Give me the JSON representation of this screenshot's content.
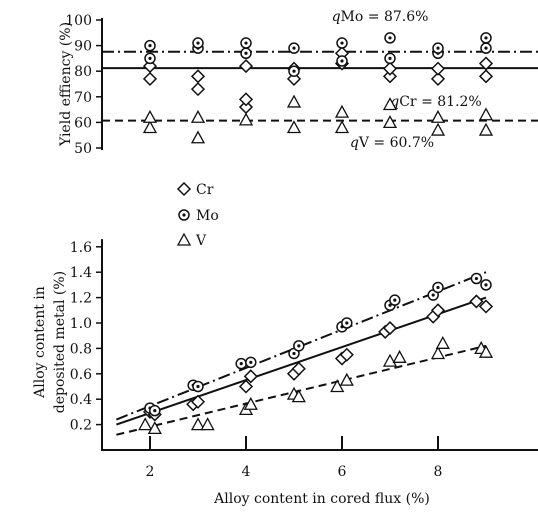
{
  "chart_data": [
    {
      "type": "scatter",
      "panel": "top",
      "ylabel": "Yield effiency (%)",
      "ylim": [
        50,
        100
      ],
      "yticks": [
        50,
        60,
        70,
        80,
        90,
        100
      ],
      "xlim": [
        1,
        9
      ],
      "series": [
        {
          "name": "Cr",
          "marker": "diamond",
          "x": [
            2,
            2,
            3,
            3,
            4,
            4,
            4,
            5,
            5,
            6,
            6,
            7,
            7,
            8,
            8,
            9,
            9
          ],
          "y": [
            77,
            82,
            73,
            78,
            66,
            69,
            82,
            77,
            81,
            83,
            87,
            78,
            81,
            77,
            81,
            78,
            83
          ]
        },
        {
          "name": "Mo",
          "marker": "circle-dot",
          "x": [
            2,
            2,
            3,
            3,
            4,
            4,
            5,
            5,
            6,
            6,
            7,
            7,
            8,
            8,
            9,
            9
          ],
          "y": [
            85,
            90,
            89,
            91,
            87,
            91,
            80,
            89,
            84,
            91,
            85,
            93,
            87,
            89,
            89,
            93
          ]
        },
        {
          "name": "V",
          "marker": "triangle",
          "x": [
            2,
            2,
            3,
            3,
            4,
            5,
            5,
            6,
            6,
            7,
            7,
            8,
            8,
            9,
            9
          ],
          "y": [
            58,
            62,
            54,
            62,
            61,
            58,
            68,
            58,
            64,
            60,
            67,
            57,
            62,
            57,
            63
          ]
        }
      ],
      "reference_lines": [
        {
          "series": "Mo",
          "value": 87.6,
          "label": "qMo = 87.6%",
          "style": "dash-dot"
        },
        {
          "series": "Cr",
          "value": 81.2,
          "label": "qCr = 81.2%",
          "style": "solid"
        },
        {
          "series": "V",
          "value": 60.7,
          "label": "qV = 60.7%",
          "style": "dashed"
        }
      ]
    },
    {
      "type": "scatter",
      "panel": "bottom",
      "xlabel": "Alloy content in cored flux (%)",
      "ylabel": "Alloy content in deposited metal (%)",
      "xlim": [
        1,
        9
      ],
      "xticks": [
        2,
        4,
        6,
        8
      ],
      "ylim": [
        0,
        1.6
      ],
      "yticks": [
        0.2,
        0.4,
        0.6,
        0.8,
        1.0,
        1.2,
        1.4,
        1.6
      ],
      "series": [
        {
          "name": "Cr",
          "marker": "diamond",
          "x": [
            2,
            2.1,
            2.9,
            3,
            4,
            4.1,
            5,
            5.1,
            6,
            6.1,
            6.9,
            7,
            7.9,
            8,
            8.8,
            9
          ],
          "y": [
            0.3,
            0.28,
            0.36,
            0.38,
            0.5,
            0.58,
            0.6,
            0.64,
            0.72,
            0.75,
            0.93,
            0.96,
            1.05,
            1.1,
            1.17,
            1.13
          ]
        },
        {
          "name": "Mo",
          "marker": "circle-dot",
          "x": [
            2,
            2.1,
            2.9,
            3,
            3.9,
            4.1,
            5,
            5.1,
            6,
            6.1,
            7,
            7.1,
            7.9,
            8,
            8.8,
            9
          ],
          "y": [
            0.33,
            0.31,
            0.51,
            0.5,
            0.68,
            0.69,
            0.76,
            0.82,
            0.97,
            1.0,
            1.14,
            1.18,
            1.22,
            1.28,
            1.35,
            1.3
          ]
        },
        {
          "name": "V",
          "marker": "triangle",
          "x": [
            1.9,
            2.1,
            3,
            3.2,
            4,
            4.1,
            5,
            5.1,
            5.9,
            6.1,
            7,
            7.2,
            8,
            8.1,
            8.9,
            9
          ],
          "y": [
            0.2,
            0.17,
            0.2,
            0.2,
            0.32,
            0.36,
            0.44,
            0.42,
            0.5,
            0.55,
            0.7,
            0.73,
            0.76,
            0.84,
            0.8,
            0.77
          ]
        }
      ],
      "fit_lines": [
        {
          "series": "Mo",
          "style": "dash-dot",
          "x": [
            1.3,
            9
          ],
          "y": [
            0.24,
            1.4
          ]
        },
        {
          "series": "Cr",
          "style": "solid",
          "x": [
            1.3,
            9
          ],
          "y": [
            0.2,
            1.2
          ]
        },
        {
          "series": "V",
          "style": "dashed",
          "x": [
            1.3,
            9
          ],
          "y": [
            0.12,
            0.82
          ]
        }
      ]
    }
  ]
}
